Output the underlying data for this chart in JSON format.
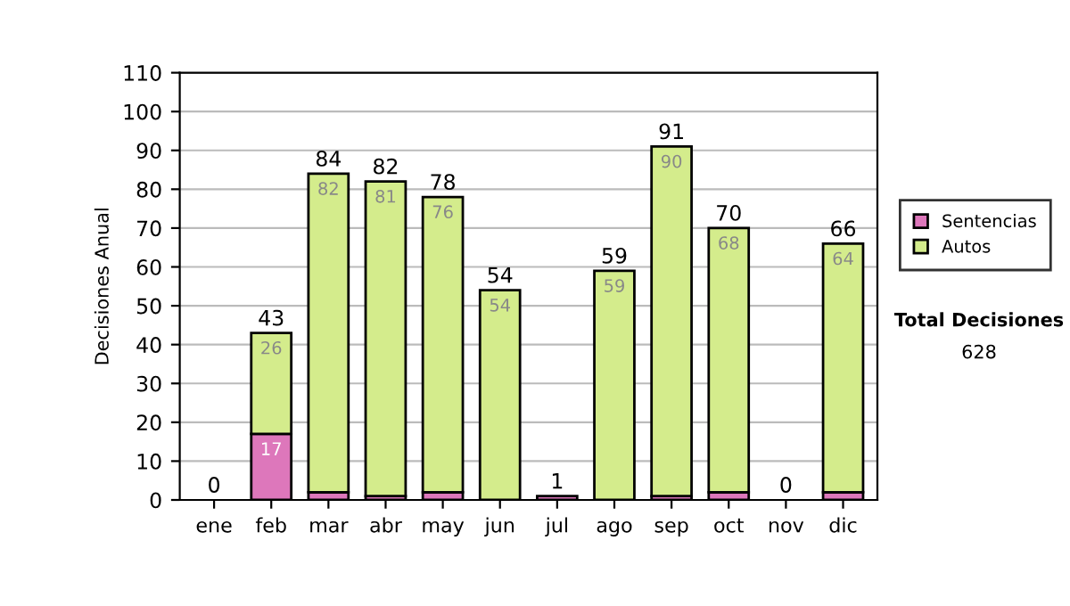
{
  "chart_data": {
    "type": "bar",
    "stacked": true,
    "ylabel": "Decisiones Anual",
    "categories": [
      "ene",
      "feb",
      "mar",
      "abr",
      "may",
      "jun",
      "jul",
      "ago",
      "sep",
      "oct",
      "nov",
      "dic"
    ],
    "series": [
      {
        "name": "Sentencias",
        "color": "#dd77bb",
        "values": [
          0,
          17,
          2,
          1,
          2,
          0,
          1,
          0,
          1,
          2,
          0,
          2
        ],
        "value_labels": [
          null,
          "17",
          null,
          null,
          null,
          null,
          null,
          null,
          null,
          null,
          null,
          null
        ]
      },
      {
        "name": "Autos",
        "color": "#d4ec8c",
        "values": [
          0,
          26,
          82,
          81,
          76,
          54,
          0,
          59,
          90,
          68,
          0,
          64
        ],
        "value_labels": [
          null,
          "26",
          "82",
          "81",
          "76",
          "54",
          null,
          "59",
          "90",
          "68",
          null,
          "64"
        ]
      }
    ],
    "totals": [
      "0",
      "43",
      "84",
      "82",
      "78",
      "54",
      "1",
      "59",
      "91",
      "70",
      "0",
      "66"
    ],
    "ylim": [
      0,
      110
    ],
    "yticks": [
      0,
      10,
      20,
      30,
      40,
      50,
      60,
      70,
      80,
      90,
      100,
      110
    ],
    "grid": "y",
    "legend": "right",
    "annotations": [
      "Total Decisiones",
      "628"
    ]
  }
}
